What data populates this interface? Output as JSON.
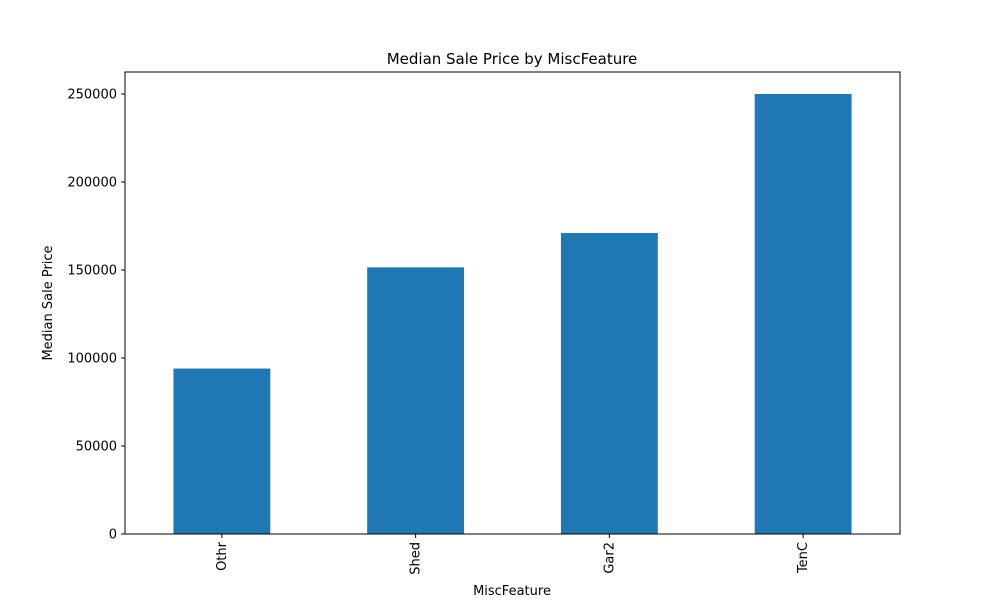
{
  "chart_data": {
    "type": "bar",
    "title": "Median Sale Price by MiscFeature",
    "xlabel": "MiscFeature",
    "ylabel": "Median Sale Price",
    "categories": [
      "Othr",
      "Shed",
      "Gar2",
      "TenC"
    ],
    "values": [
      94000,
      151500,
      171000,
      250000
    ],
    "ylim": [
      0,
      262500
    ],
    "yticks": [
      0,
      50000,
      100000,
      150000,
      200000,
      250000
    ],
    "ytick_labels": [
      "0",
      "50000",
      "100000",
      "150000",
      "200000",
      "250000"
    ],
    "grid": false,
    "legend": "none",
    "bar_color": "#1f77b4"
  }
}
